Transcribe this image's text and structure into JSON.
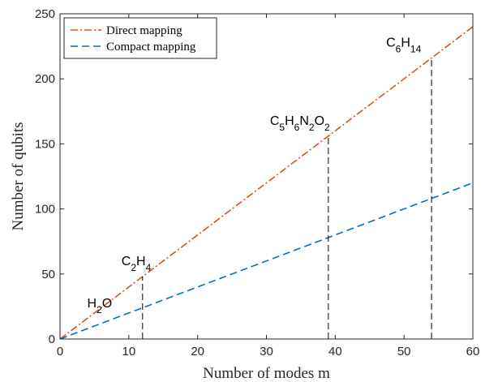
{
  "chart_data": {
    "type": "line",
    "xlabel": "Number of modes m",
    "ylabel": "Number of qubits",
    "xlim": [
      0,
      60
    ],
    "ylim": [
      0,
      250
    ],
    "xticks": [
      0,
      10,
      20,
      30,
      40,
      50,
      60
    ],
    "yticks": [
      0,
      50,
      100,
      150,
      200,
      250
    ],
    "grid": false,
    "legend_position": "top-left",
    "series": [
      {
        "name": "Direct mapping",
        "x": [
          0,
          60
        ],
        "y": [
          0,
          240
        ],
        "color": "#d95319",
        "style": "dashdot"
      },
      {
        "name": "Compact mapping",
        "x": [
          0,
          60
        ],
        "y": [
          0,
          120
        ],
        "color": "#0072bd",
        "style": "dashed"
      }
    ],
    "annotations": [
      {
        "id": "h2o",
        "m": 3,
        "parts": [
          [
            "H",
            ""
          ],
          [
            "2",
            "sub"
          ],
          [
            "O",
            ""
          ]
        ]
      },
      {
        "id": "c2h4",
        "m": 12,
        "parts": [
          [
            "C",
            ""
          ],
          [
            "2",
            "sub"
          ],
          [
            "H",
            ""
          ],
          [
            "4",
            "sub"
          ]
        ]
      },
      {
        "id": "c5h6n2o2",
        "m": 39,
        "parts": [
          [
            "C",
            ""
          ],
          [
            "5",
            "sub"
          ],
          [
            "H",
            ""
          ],
          [
            "6",
            "sub"
          ],
          [
            "N",
            ""
          ],
          [
            "2",
            "sub"
          ],
          [
            "O",
            ""
          ],
          [
            "2",
            "sub"
          ]
        ]
      },
      {
        "id": "c6h14",
        "m": 54,
        "parts": [
          [
            "C",
            ""
          ],
          [
            "6",
            "sub"
          ],
          [
            "H",
            ""
          ],
          [
            "14",
            "sub"
          ]
        ]
      }
    ]
  }
}
